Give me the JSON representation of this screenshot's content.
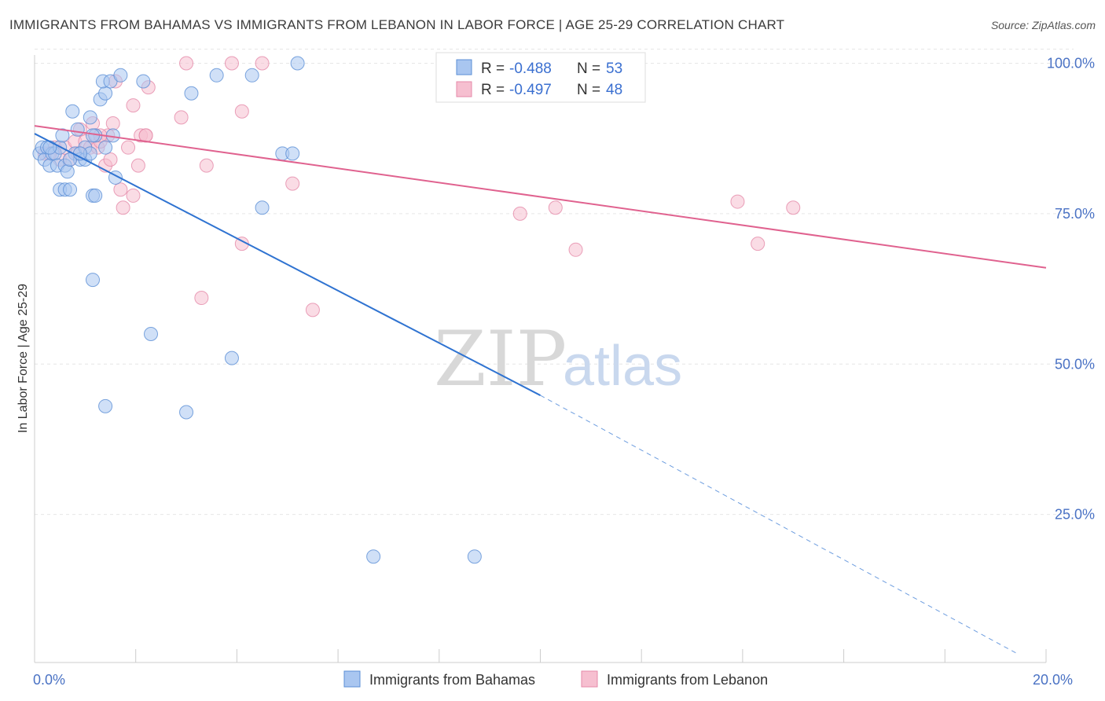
{
  "title": "IMMIGRANTS FROM BAHAMAS VS IMMIGRANTS FROM LEBANON IN LABOR FORCE | AGE 25-29 CORRELATION CHART",
  "source": "Source: ZipAtlas.com",
  "watermark": {
    "zip": "ZIP",
    "atlas": "atlas"
  },
  "colors": {
    "blue_fill": "#a9c6f0",
    "blue_stroke": "#5b8fd6",
    "blue_line": "#2f73d1",
    "pink_fill": "#f6bfd0",
    "pink_stroke": "#e58aa9",
    "pink_line": "#e0628f",
    "tick_text": "#4a72c4",
    "grid": "#e6e6e6"
  },
  "legend": {
    "rows": [
      {
        "r_label": "R = ",
        "r_value": "-0.488",
        "n_label": "N = ",
        "n_value": "53"
      },
      {
        "r_label": "R = ",
        "r_value": "-0.497",
        "n_label": "N = ",
        "n_value": "48"
      }
    ]
  },
  "chart_data": {
    "type": "scatter",
    "xlabel": "",
    "ylabel": "In Labor Force | Age 25-29",
    "xlim": [
      0,
      20
    ],
    "ylim": [
      0,
      105
    ],
    "x_tick_labels": {
      "0": "0.0%",
      "20": "20.0%"
    },
    "y_ticks": [
      25,
      50,
      75,
      100
    ],
    "y_tick_labels": [
      "25.0%",
      "50.0%",
      "75.0%",
      "100.0%"
    ],
    "grid": true,
    "legend_position": "bottom",
    "series": [
      {
        "name": "Immigrants from Bahamas",
        "points": [
          [
            0.1,
            85
          ],
          [
            0.15,
            86
          ],
          [
            0.2,
            84
          ],
          [
            0.25,
            86
          ],
          [
            0.3,
            83
          ],
          [
            0.35,
            85
          ],
          [
            0.4,
            85
          ],
          [
            0.45,
            83
          ],
          [
            0.5,
            86
          ],
          [
            0.55,
            88
          ],
          [
            0.6,
            83
          ],
          [
            0.65,
            82
          ],
          [
            0.5,
            79
          ],
          [
            0.6,
            79
          ],
          [
            0.7,
            79
          ],
          [
            0.75,
            92
          ],
          [
            0.85,
            89
          ],
          [
            0.8,
            85
          ],
          [
            0.9,
            84
          ],
          [
            1.0,
            84
          ],
          [
            1.0,
            86
          ],
          [
            1.1,
            91
          ],
          [
            1.1,
            85
          ],
          [
            1.2,
            88
          ],
          [
            1.15,
            88
          ],
          [
            1.15,
            78
          ],
          [
            1.2,
            78
          ],
          [
            1.3,
            94
          ],
          [
            1.4,
            95
          ],
          [
            1.35,
            97
          ],
          [
            1.5,
            97
          ],
          [
            1.55,
            88
          ],
          [
            1.6,
            81
          ],
          [
            1.7,
            98
          ],
          [
            1.4,
            86
          ],
          [
            2.15,
            97
          ],
          [
            3.1,
            95
          ],
          [
            3.6,
            98
          ],
          [
            4.3,
            98
          ],
          [
            5.2,
            100
          ],
          [
            4.5,
            76
          ],
          [
            4.9,
            85
          ],
          [
            5.1,
            85
          ],
          [
            1.15,
            64
          ],
          [
            2.3,
            55
          ],
          [
            3.9,
            51
          ],
          [
            1.4,
            43
          ],
          [
            3.0,
            42
          ],
          [
            6.7,
            18
          ],
          [
            8.7,
            18
          ],
          [
            0.7,
            84
          ],
          [
            0.9,
            85
          ],
          [
            0.3,
            86
          ]
        ],
        "trend": [
          [
            0,
            88.3
          ],
          [
            10,
            44.8
          ]
        ],
        "trend_extension": [
          [
            10,
            44.8
          ],
          [
            19.4,
            2.0
          ]
        ]
      },
      {
        "name": "Immigrants from Lebanon",
        "points": [
          [
            0.2,
            85
          ],
          [
            0.4,
            86
          ],
          [
            0.5,
            84
          ],
          [
            0.6,
            86
          ],
          [
            0.7,
            84
          ],
          [
            0.8,
            87
          ],
          [
            0.85,
            85
          ],
          [
            0.9,
            89
          ],
          [
            1.0,
            87
          ],
          [
            1.1,
            86
          ],
          [
            1.15,
            90
          ],
          [
            1.2,
            88
          ],
          [
            1.25,
            86
          ],
          [
            1.3,
            87
          ],
          [
            1.4,
            83
          ],
          [
            1.45,
            88
          ],
          [
            1.5,
            84
          ],
          [
            1.55,
            90
          ],
          [
            1.6,
            97
          ],
          [
            1.7,
            79
          ],
          [
            1.75,
            76
          ],
          [
            1.85,
            86
          ],
          [
            1.95,
            93
          ],
          [
            1.95,
            78
          ],
          [
            2.05,
            83
          ],
          [
            2.1,
            88
          ],
          [
            2.2,
            88
          ],
          [
            2.25,
            96
          ],
          [
            2.9,
            91
          ],
          [
            3.0,
            100
          ],
          [
            3.4,
            83
          ],
          [
            3.9,
            100
          ],
          [
            4.1,
            92
          ],
          [
            4.5,
            100
          ],
          [
            5.1,
            80
          ],
          [
            4.1,
            70
          ],
          [
            3.3,
            61
          ],
          [
            5.5,
            59
          ],
          [
            9.6,
            75
          ],
          [
            10.3,
            76
          ],
          [
            10.7,
            69
          ],
          [
            13.9,
            77
          ],
          [
            14.3,
            70
          ],
          [
            15.0,
            76
          ],
          [
            0.3,
            85
          ],
          [
            0.9,
            85
          ],
          [
            1.3,
            88
          ],
          [
            2.2,
            88
          ]
        ],
        "trend": [
          [
            0,
            89.6
          ],
          [
            20,
            66.0
          ]
        ]
      }
    ]
  }
}
